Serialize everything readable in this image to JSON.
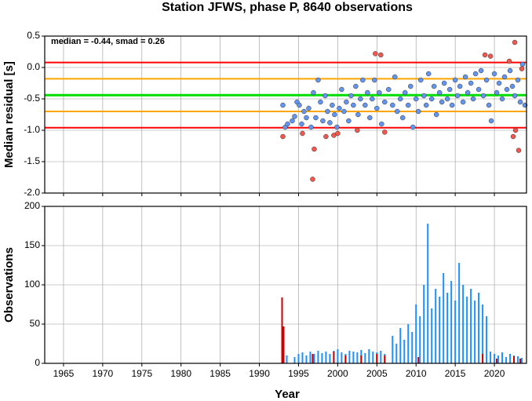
{
  "chart_data": [
    {
      "type": "scatter",
      "title": "Station JFWS, phase P, 8640 observations",
      "y_label": "Median residual [s]",
      "annotation": "median = -0.44, smad = 0.26",
      "xlim": [
        1962.6,
        2024.1
      ],
      "xticks": [
        1965,
        1970,
        1975,
        1980,
        1985,
        1990,
        1995,
        2000,
        2005,
        2010,
        2015,
        2020
      ],
      "ylim": [
        -2.0,
        0.5
      ],
      "yticks": [
        0.5,
        {
          "value": 0.0,
          "label": "0.0"
        },
        -0.5,
        {
          "value": -1.0,
          "label": "-1.0"
        },
        -1.5,
        {
          "value": -2.0,
          "label": "-2.0"
        }
      ],
      "grid": true,
      "hlines": [
        {
          "value": 0.08,
          "color": "#ff0000"
        },
        {
          "value": -0.18,
          "color": "#ffa500"
        },
        {
          "value": -0.44,
          "color": "#00dd00"
        },
        {
          "value": -0.7,
          "color": "#ffa500"
        },
        {
          "value": -0.96,
          "color": "#ff0000"
        }
      ],
      "series": [
        {
          "color": "#6495ed",
          "x": [
            1993.0,
            1993.3,
            1993.6,
            1994.2,
            1994.5,
            1994.8,
            1995.1,
            1995.4,
            1995.7,
            1996.0,
            1996.3,
            1996.6,
            1996.9,
            1997.2,
            1997.5,
            1997.8,
            1998.1,
            1998.4,
            1998.7,
            1999.0,
            1999.3,
            1999.6,
            1999.9,
            2000.2,
            2000.5,
            2000.8,
            2001.1,
            2001.4,
            2001.7,
            2002.0,
            2002.3,
            2002.6,
            2002.9,
            2003.2,
            2003.5,
            2003.8,
            2004.1,
            2004.4,
            2004.7,
            2005.0,
            2005.3,
            2005.6,
            2006.0,
            2006.5,
            2007.0,
            2007.3,
            2007.6,
            2008.0,
            2008.3,
            2008.6,
            2009.0,
            2009.3,
            2009.6,
            2010.0,
            2010.3,
            2010.6,
            2011.0,
            2011.3,
            2011.6,
            2012.0,
            2012.3,
            2012.6,
            2013.0,
            2013.3,
            2013.6,
            2014.0,
            2014.3,
            2014.6,
            2015.0,
            2015.3,
            2015.6,
            2016.0,
            2016.3,
            2016.6,
            2017.0,
            2017.3,
            2017.6,
            2018.0,
            2018.3,
            2018.6,
            2019.0,
            2019.3,
            2019.6,
            2020.0,
            2020.3,
            2020.6,
            2021.0,
            2021.3,
            2021.6,
            2022.0,
            2022.3,
            2022.6,
            2023.0,
            2023.3,
            2023.6,
            2023.9
          ],
          "values": [
            -0.6,
            -0.95,
            -0.9,
            -0.85,
            -0.78,
            -0.55,
            -0.6,
            -0.9,
            -0.7,
            -0.8,
            -0.65,
            -0.95,
            -0.4,
            -0.8,
            -0.2,
            -0.55,
            -0.85,
            -0.45,
            -0.7,
            -0.88,
            -0.6,
            -0.75,
            -0.95,
            -0.65,
            -0.35,
            -0.7,
            -0.55,
            -0.85,
            -0.45,
            -0.6,
            -0.3,
            -0.75,
            -0.5,
            -0.2,
            -0.6,
            -0.4,
            -0.8,
            -0.5,
            -0.2,
            -0.65,
            -0.4,
            -0.9,
            -0.55,
            -0.35,
            -0.6,
            -0.15,
            -0.7,
            -0.5,
            -0.8,
            -0.4,
            -0.6,
            -0.3,
            -0.95,
            -0.5,
            -0.7,
            -0.2,
            -0.45,
            -0.6,
            -0.1,
            -0.5,
            -0.3,
            -0.75,
            -0.4,
            -0.55,
            -0.25,
            -0.5,
            -0.35,
            -0.6,
            -0.2,
            -0.45,
            -0.3,
            -0.55,
            -0.15,
            -0.4,
            -0.25,
            -0.5,
            -0.1,
            -0.35,
            -0.05,
            -0.45,
            -0.2,
            -0.6,
            -0.85,
            -0.1,
            -0.4,
            -0.25,
            -0.5,
            -0.15,
            -0.35,
            -0.05,
            -0.3,
            -0.45,
            -0.2,
            -0.55,
            0.05,
            -0.6
          ]
        },
        {
          "color": "#f0584f",
          "x": [
            1993.0,
            1995.5,
            1996.8,
            1997.0,
            1998.5,
            1999.5,
            2000.0,
            2002.5,
            2004.8,
            2005.5,
            2006.0,
            2018.8,
            2019.5,
            2021.9,
            2022.4,
            2022.6,
            2022.7,
            2023.1,
            2023.5
          ],
          "values": [
            -1.1,
            -1.05,
            -1.78,
            -1.3,
            -1.1,
            -1.08,
            -1.05,
            -1.0,
            0.22,
            0.2,
            -1.03,
            0.2,
            0.18,
            0.1,
            -1.1,
            0.4,
            -1.0,
            -1.32,
            -0.02
          ]
        }
      ]
    },
    {
      "type": "bar",
      "y_label": "Observations",
      "x_label": "Year",
      "xlim": [
        1962.6,
        2024.1
      ],
      "xticks": [
        1965,
        1970,
        1975,
        1980,
        1985,
        1990,
        1995,
        2000,
        2005,
        2010,
        2015,
        2020
      ],
      "ylim": [
        0,
        200
      ],
      "yticks": [
        0,
        50,
        100,
        150,
        200
      ],
      "grid": true,
      "series": [
        {
          "color": "#1e90ff",
          "x": [
            1993.0,
            1993.5,
            1994.5,
            1995.0,
            1995.5,
            1996.0,
            1996.5,
            1997.0,
            1997.5,
            1998.0,
            1998.5,
            1999.0,
            1999.5,
            2000.0,
            2000.5,
            2001.0,
            2001.5,
            2002.0,
            2002.5,
            2003.0,
            2003.5,
            2004.0,
            2004.5,
            2005.0,
            2005.5,
            2006.0,
            2007.0,
            2007.5,
            2008.0,
            2008.5,
            2009.0,
            2009.5,
            2010.0,
            2010.5,
            2011.0,
            2011.5,
            2012.0,
            2012.5,
            2013.0,
            2013.5,
            2014.0,
            2014.5,
            2015.0,
            2015.5,
            2016.0,
            2016.5,
            2017.0,
            2017.5,
            2018.0,
            2018.5,
            2019.0,
            2019.5,
            2020.0,
            2020.5,
            2021.0,
            2021.5,
            2022.0,
            2022.5,
            2023.0,
            2023.5
          ],
          "values": [
            27,
            10,
            8,
            12,
            14,
            10,
            15,
            12,
            16,
            13,
            15,
            12,
            16,
            18,
            14,
            12,
            16,
            15,
            14,
            17,
            13,
            18,
            15,
            14,
            16,
            12,
            35,
            25,
            45,
            30,
            50,
            40,
            75,
            60,
            100,
            178,
            70,
            95,
            85,
            115,
            90,
            105,
            80,
            128,
            100,
            85,
            95,
            80,
            90,
            75,
            60,
            15,
            12,
            10,
            14,
            8,
            12,
            10,
            9,
            7
          ]
        },
        {
          "color": "#cc0000",
          "x": [
            1992.9,
            1993.1,
            1996.8,
            1999.5,
            2001.0,
            2003.0,
            2005.0,
            2006.0,
            2010.3,
            2018.5,
            2020.3,
            2022.5,
            2023.3
          ],
          "values": [
            84,
            47,
            12,
            15,
            10,
            10,
            12,
            10,
            8,
            12,
            6,
            9,
            6
          ]
        }
      ]
    }
  ]
}
